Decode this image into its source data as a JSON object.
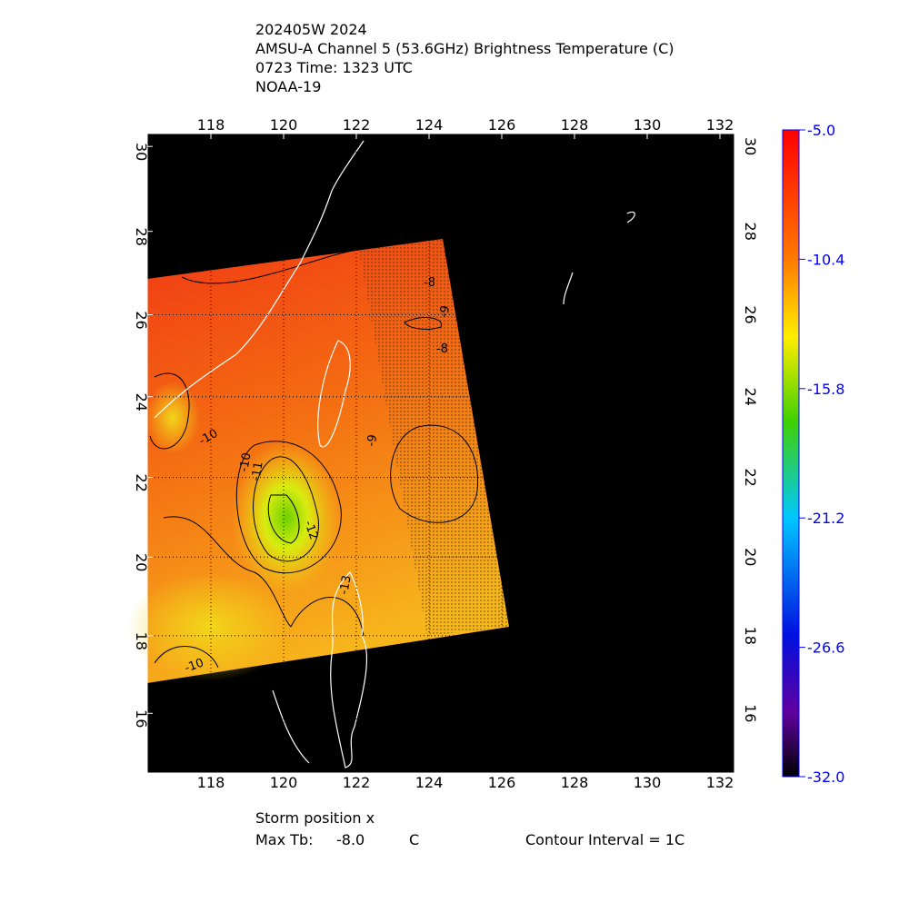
{
  "header": {
    "lines": [
      "202405W 2024",
      "AMSU-A Channel 5 (53.6GHz) Brightness Temperature (C)",
      "0723 Time: 1323 UTC",
      "NOAA-19"
    ]
  },
  "map": {
    "lon_range": [
      116.25,
      132.4
    ],
    "lat_range": [
      14.45,
      30.3
    ],
    "lon_ticks": [
      118,
      120,
      122,
      124,
      126,
      128,
      130,
      132
    ],
    "lat_ticks": [
      16,
      18,
      20,
      22,
      24,
      26,
      28,
      30
    ],
    "contour_labels": [
      "-8",
      "-8",
      "-9",
      "-9",
      "-10",
      "-10",
      "-11",
      "-12",
      "-13",
      "-10"
    ]
  },
  "colorbar": {
    "range": [
      -32,
      -5
    ],
    "ticks": [
      {
        "value": -5,
        "label": "-5.0"
      },
      {
        "value": -10.4,
        "label": "-10.4"
      },
      {
        "value": -15.8,
        "label": "-15.8"
      },
      {
        "value": -21.2,
        "label": "-21.2"
      },
      {
        "value": -26.6,
        "label": "-26.6"
      },
      {
        "value": -32,
        "label": "-32.0"
      }
    ]
  },
  "footer": {
    "storm_position": "Storm position x",
    "max_tb_label": "Max Tb:",
    "max_tb": {
      "value": -8,
      "label": "-8.0"
    },
    "unit": "C",
    "contour_interval": "Contour Interval = 1C"
  }
}
